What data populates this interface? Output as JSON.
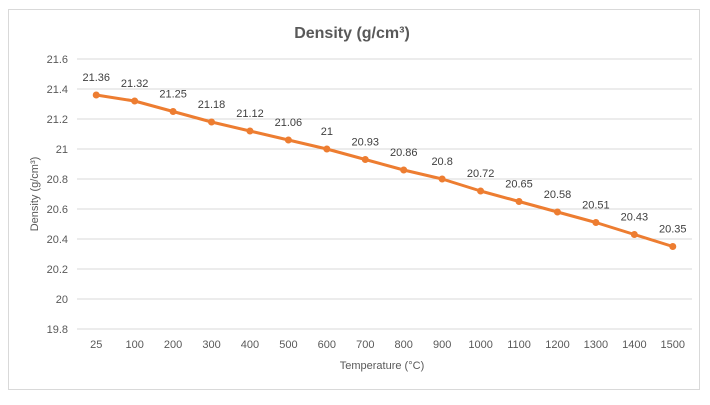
{
  "chart_data": {
    "type": "line",
    "title": "Density (g/cm³)",
    "xlabel": "Temperature (°C)",
    "ylabel": "Density (g/cm³)",
    "categories": [
      "25",
      "100",
      "200",
      "300",
      "400",
      "500",
      "600",
      "700",
      "800",
      "900",
      "1000",
      "1100",
      "1200",
      "1300",
      "1400",
      "1500"
    ],
    "series": [
      {
        "values": [
          21.36,
          21.32,
          21.25,
          21.18,
          21.12,
          21.06,
          21,
          20.93,
          20.86,
          20.8,
          20.72,
          20.65,
          20.58,
          20.51,
          20.43,
          20.35
        ],
        "color": "#ED7D31"
      }
    ],
    "data_labels": [
      "21.36",
      "21.32",
      "21.25",
      "21.18",
      "21.12",
      "21.06",
      "21",
      "20.93",
      "20.86",
      "20.8",
      "20.72",
      "20.65",
      "20.58",
      "20.51",
      "20.43",
      "20.35"
    ],
    "ylim": [
      19.8,
      21.6
    ],
    "yticks": [
      "19.8",
      "20",
      "20.2",
      "20.4",
      "20.6",
      "20.8",
      "21",
      "21.2",
      "21.4",
      "21.6"
    ],
    "grid": true,
    "legend": "none"
  }
}
